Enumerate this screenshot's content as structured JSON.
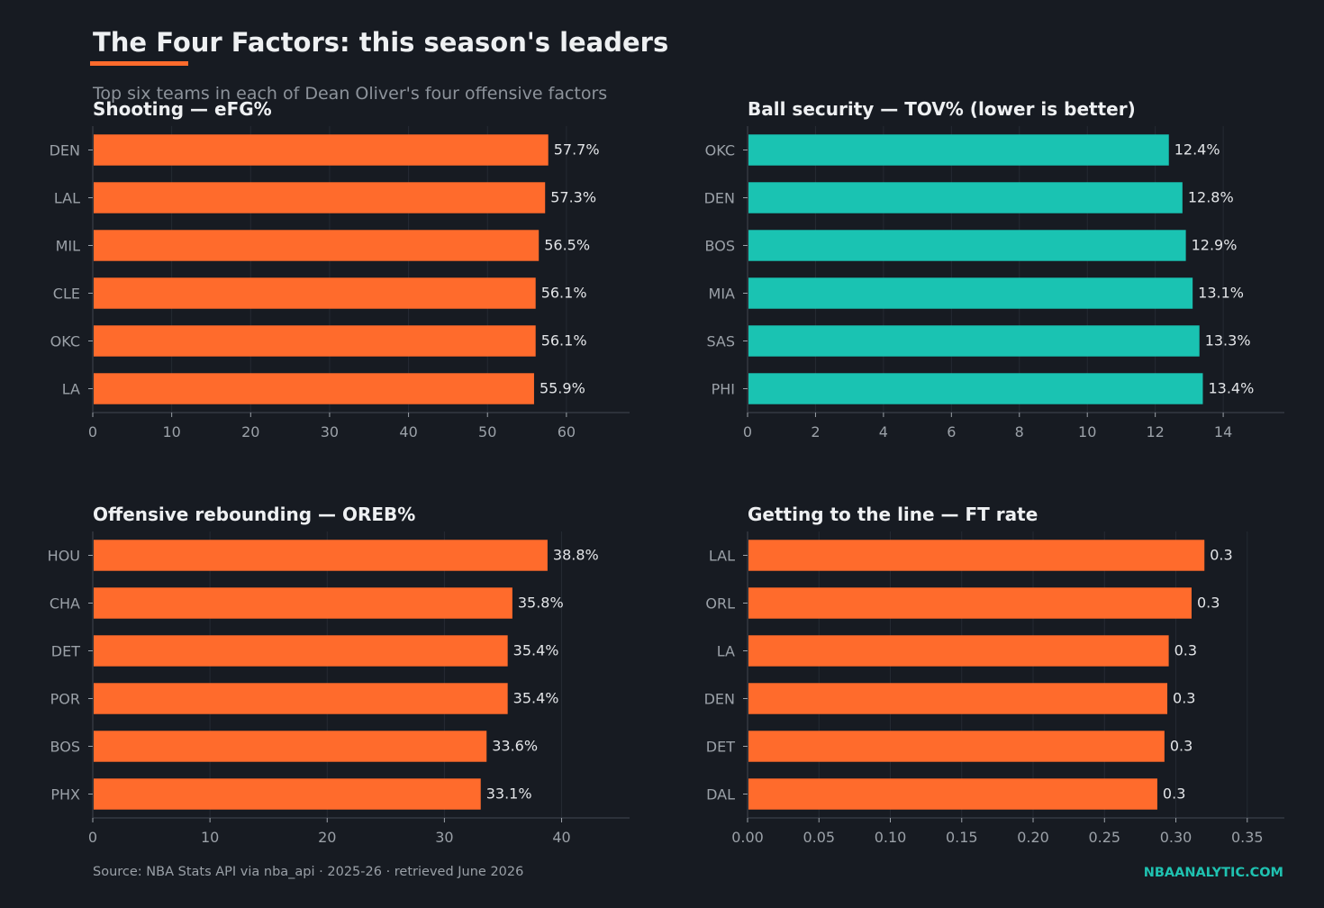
{
  "header": {
    "title": "The Four Factors: this season's leaders",
    "subtitle": "Top six teams in each of Dean Oliver's four offensive factors"
  },
  "footer": {
    "source": "Source: NBA Stats API via nba_api · 2025-26 · retrieved June 2026",
    "brand": "NBAANALYTIC.COM"
  },
  "colors": {
    "background": "#171b22",
    "accent_orange": "#ff6b2c",
    "accent_teal": "#1ac3b2",
    "grid": "#252a33",
    "axis": "#3a3f48",
    "tick_text": "#9ba1a8",
    "label_text": "#e3e5e8"
  },
  "chart_data": [
    {
      "type": "bar",
      "orientation": "horizontal",
      "title": "Shooting — eFG%",
      "categories": [
        "DEN",
        "LAL",
        "MIL",
        "CLE",
        "OKC",
        "LA"
      ],
      "values": [
        57.7,
        57.3,
        56.5,
        56.1,
        56.1,
        55.9
      ],
      "value_labels": [
        "57.7%",
        "57.3%",
        "56.5%",
        "56.1%",
        "56.1%",
        "55.9%"
      ],
      "xlim": [
        0,
        68
      ],
      "xticks": [
        0,
        10,
        20,
        30,
        40,
        50,
        60
      ],
      "xtick_labels": [
        "0",
        "10",
        "20",
        "30",
        "40",
        "50",
        "60"
      ],
      "color": "#ff6b2c",
      "grid": true
    },
    {
      "type": "bar",
      "orientation": "horizontal",
      "title": "Ball security — TOV% (lower is better)",
      "categories": [
        "OKC",
        "DEN",
        "BOS",
        "MIA",
        "SAS",
        "PHI"
      ],
      "values": [
        12.4,
        12.8,
        12.9,
        13.1,
        13.3,
        13.4
      ],
      "value_labels": [
        "12.4%",
        "12.8%",
        "12.9%",
        "13.1%",
        "13.3%",
        "13.4%"
      ],
      "xlim": [
        0,
        15.8
      ],
      "xticks": [
        0,
        2,
        4,
        6,
        8,
        10,
        12,
        14
      ],
      "xtick_labels": [
        "0",
        "2",
        "4",
        "6",
        "8",
        "10",
        "12",
        "14"
      ],
      "color": "#1ac3b2",
      "grid": true
    },
    {
      "type": "bar",
      "orientation": "horizontal",
      "title": "Offensive rebounding — OREB%",
      "categories": [
        "HOU",
        "CHA",
        "DET",
        "POR",
        "BOS",
        "PHX"
      ],
      "values": [
        38.8,
        35.8,
        35.4,
        35.4,
        33.6,
        33.1
      ],
      "value_labels": [
        "38.8%",
        "35.8%",
        "35.4%",
        "35.4%",
        "33.6%",
        "33.1%"
      ],
      "xlim": [
        0,
        45.8
      ],
      "xticks": [
        0,
        10,
        20,
        30,
        40
      ],
      "xtick_labels": [
        "0",
        "10",
        "20",
        "30",
        "40"
      ],
      "color": "#ff6b2c",
      "grid": true
    },
    {
      "type": "bar",
      "orientation": "horizontal",
      "title": "Getting to the line — FT rate",
      "categories": [
        "LAL",
        "ORL",
        "LA",
        "DEN",
        "DET",
        "DAL"
      ],
      "values": [
        0.32,
        0.311,
        0.295,
        0.294,
        0.292,
        0.287
      ],
      "value_labels": [
        "0.3",
        "0.3",
        "0.3",
        "0.3",
        "0.3",
        "0.3"
      ],
      "xlim": [
        0,
        0.376
      ],
      "xticks": [
        0,
        0.05,
        0.1,
        0.15,
        0.2,
        0.25,
        0.3,
        0.35
      ],
      "xtick_labels": [
        "0.00",
        "0.05",
        "0.10",
        "0.15",
        "0.20",
        "0.25",
        "0.30",
        "0.35"
      ],
      "color": "#ff6b2c",
      "grid": true
    }
  ]
}
